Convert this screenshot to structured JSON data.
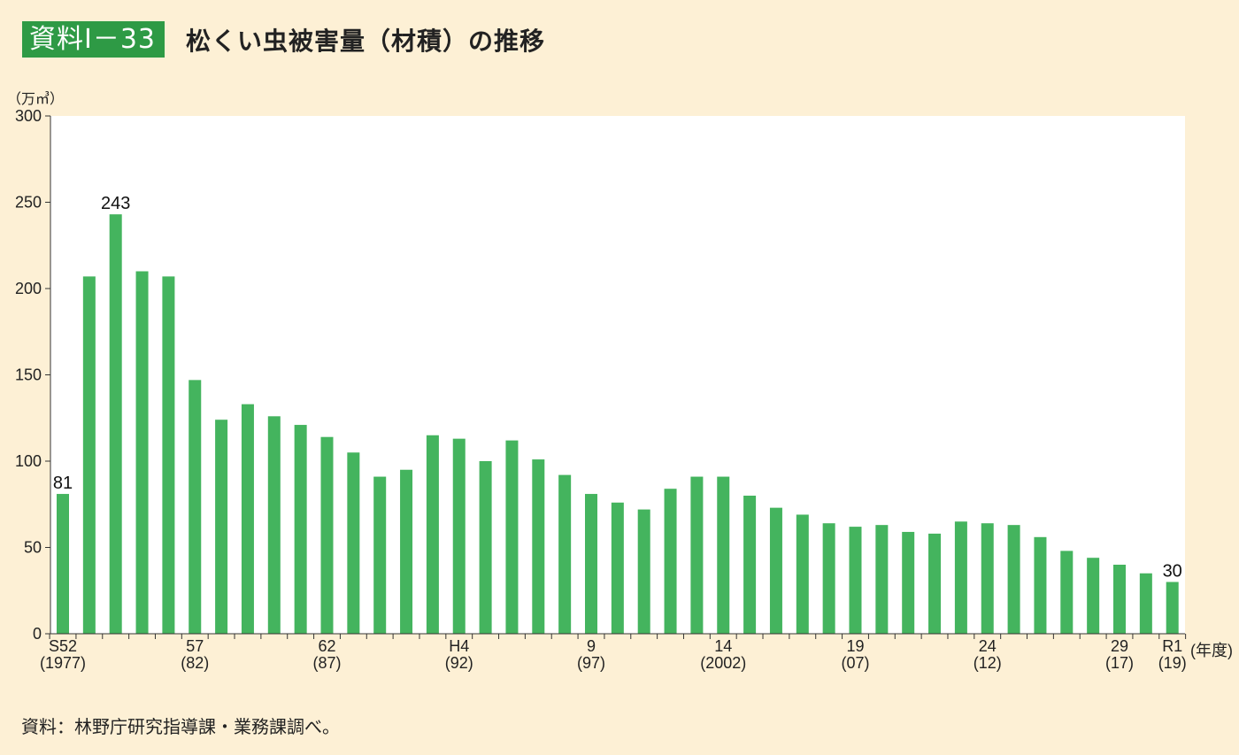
{
  "header": {
    "badge": "資料Ⅰ－33",
    "title": "松くい虫被害量（材積）の推移"
  },
  "unit_label": "（万㎥）",
  "source_note": "資料：林野庁研究指導課・業務課調べ。",
  "colors": {
    "background": "#fdf0d5",
    "plot_background": "#ffffff",
    "bar": "#44b45e",
    "badge": "#2e9a45"
  },
  "chart_data": {
    "type": "bar",
    "ylim": [
      0,
      300
    ],
    "yticks": [
      0,
      50,
      100,
      150,
      200,
      250,
      300
    ],
    "grid": false,
    "x_unit_label": "(年度)",
    "x_tick_labels": [
      {
        "index": 0,
        "line1": "S52",
        "line2": "(1977)"
      },
      {
        "index": 5,
        "line1": "57",
        "line2": "(82)"
      },
      {
        "index": 10,
        "line1": "62",
        "line2": "(87)"
      },
      {
        "index": 15,
        "line1": "H4",
        "line2": "(92)"
      },
      {
        "index": 20,
        "line1": "9",
        "line2": "(97)"
      },
      {
        "index": 25,
        "line1": "14",
        "line2": "(2002)"
      },
      {
        "index": 30,
        "line1": "19",
        "line2": "(07)"
      },
      {
        "index": 35,
        "line1": "24",
        "line2": "(12)"
      },
      {
        "index": 40,
        "line1": "29",
        "line2": "(17)"
      },
      {
        "index": 42,
        "line1": "R1",
        "line2": "(19)"
      }
    ],
    "values": [
      81,
      207,
      243,
      210,
      207,
      147,
      124,
      133,
      126,
      121,
      114,
      105,
      91,
      95,
      115,
      113,
      100,
      112,
      101,
      92,
      81,
      76,
      72,
      84,
      91,
      91,
      80,
      73,
      69,
      64,
      62,
      63,
      59,
      58,
      65,
      64,
      63,
      56,
      48,
      44,
      40,
      35,
      30
    ],
    "data_labels": [
      {
        "index": 0,
        "text": "81"
      },
      {
        "index": 2,
        "text": "243"
      },
      {
        "index": 42,
        "text": "30"
      }
    ]
  }
}
